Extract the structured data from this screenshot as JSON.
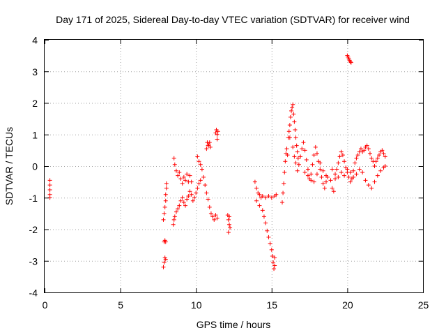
{
  "chart_data": {
    "type": "scatter",
    "title": "Day 171 of 2025, Sidereal Day-to-day VTEC variation (SDTVAR) for receiver wind",
    "xlabel": "GPS time / hours",
    "ylabel": "SDTVAR / TECUs",
    "xlim": [
      0,
      25
    ],
    "ylim": [
      -4,
      4
    ],
    "x_ticks": [
      0,
      5,
      10,
      15,
      20,
      25
    ],
    "x_tick_labels": [
      "0",
      "5",
      "10",
      "15",
      "20",
      "25"
    ],
    "y_ticks": [
      -4,
      -3,
      -2,
      -1,
      0,
      1,
      2,
      3,
      4
    ],
    "y_tick_labels": [
      "-4",
      "-3",
      "-2",
      "-1",
      "0",
      "1",
      "2",
      "3",
      "4"
    ],
    "grid": true,
    "marker": "+",
    "color": "#ff0000",
    "series": [
      {
        "name": "SDTVAR",
        "points": [
          [
            0.35,
            -0.45
          ],
          [
            0.35,
            -0.6
          ],
          [
            0.35,
            -0.75
          ],
          [
            0.35,
            -0.9
          ],
          [
            0.35,
            -1.0
          ],
          [
            7.85,
            -3.2
          ],
          [
            7.9,
            -3.05
          ],
          [
            7.95,
            -2.9
          ],
          [
            8.0,
            -2.95
          ],
          [
            7.9,
            -2.4
          ],
          [
            7.95,
            -2.35
          ],
          [
            8.0,
            -2.4
          ],
          [
            7.85,
            -1.7
          ],
          [
            7.9,
            -1.5
          ],
          [
            7.95,
            -1.3
          ],
          [
            8.0,
            -1.1
          ],
          [
            8.0,
            -0.9
          ],
          [
            8.05,
            -0.7
          ],
          [
            8.05,
            -0.55
          ],
          [
            8.5,
            -1.85
          ],
          [
            8.55,
            -1.7
          ],
          [
            8.6,
            -1.6
          ],
          [
            8.7,
            -1.45
          ],
          [
            8.8,
            -1.35
          ],
          [
            8.9,
            -1.25
          ],
          [
            9.0,
            -1.1
          ],
          [
            9.1,
            -1.0
          ],
          [
            9.2,
            -1.15
          ],
          [
            9.3,
            -1.25
          ],
          [
            9.4,
            -1.05
          ],
          [
            9.5,
            -0.95
          ],
          [
            9.6,
            -0.8
          ],
          [
            9.7,
            -0.9
          ],
          [
            9.8,
            -1.1
          ],
          [
            9.9,
            -1.0
          ],
          [
            10.0,
            -0.85
          ],
          [
            10.1,
            -0.7
          ],
          [
            10.2,
            -0.55
          ],
          [
            10.3,
            -0.45
          ],
          [
            8.55,
            0.25
          ],
          [
            8.6,
            0.05
          ],
          [
            8.7,
            -0.15
          ],
          [
            8.8,
            -0.3
          ],
          [
            8.9,
            -0.2
          ],
          [
            9.0,
            -0.4
          ],
          [
            9.1,
            -0.55
          ],
          [
            9.2,
            -0.35
          ],
          [
            9.3,
            -0.45
          ],
          [
            9.4,
            -0.25
          ],
          [
            9.5,
            -0.5
          ],
          [
            9.6,
            -0.3
          ],
          [
            9.7,
            -0.5
          ],
          [
            10.1,
            0.3
          ],
          [
            10.2,
            0.15
          ],
          [
            10.3,
            0.05
          ],
          [
            10.4,
            -0.1
          ],
          [
            10.5,
            -0.35
          ],
          [
            10.6,
            -0.6
          ],
          [
            10.7,
            -0.85
          ],
          [
            10.8,
            -1.05
          ],
          [
            10.9,
            -1.3
          ],
          [
            11.0,
            -1.5
          ],
          [
            11.1,
            -1.6
          ],
          [
            11.2,
            -1.7
          ],
          [
            11.3,
            -1.55
          ],
          [
            11.4,
            -1.65
          ],
          [
            10.7,
            0.55
          ],
          [
            10.75,
            0.75
          ],
          [
            10.8,
            0.65
          ],
          [
            10.85,
            0.7
          ],
          [
            10.9,
            0.75
          ],
          [
            10.95,
            0.6
          ],
          [
            11.3,
            1.05
          ],
          [
            11.35,
            1.15
          ],
          [
            11.4,
            1.0
          ],
          [
            11.45,
            1.1
          ],
          [
            11.4,
            0.85
          ],
          [
            12.1,
            -1.55
          ],
          [
            12.15,
            -1.7
          ],
          [
            12.2,
            -1.85
          ],
          [
            12.25,
            -1.95
          ],
          [
            12.15,
            -2.1
          ],
          [
            12.2,
            -1.6
          ],
          [
            13.9,
            -0.5
          ],
          [
            14.0,
            -0.7
          ],
          [
            14.1,
            -0.85
          ],
          [
            14.0,
            -1.1
          ],
          [
            14.2,
            -1.25
          ],
          [
            14.3,
            -1.0
          ],
          [
            14.4,
            -1.4
          ],
          [
            14.5,
            -1.6
          ],
          [
            14.6,
            -1.8
          ],
          [
            14.7,
            -2.05
          ],
          [
            14.8,
            -2.25
          ],
          [
            14.9,
            -2.45
          ],
          [
            15.0,
            -2.65
          ],
          [
            15.05,
            -2.85
          ],
          [
            15.1,
            -3.05
          ],
          [
            15.15,
            -3.25
          ],
          [
            15.2,
            -2.9
          ],
          [
            15.2,
            -3.15
          ],
          [
            14.2,
            -0.9
          ],
          [
            14.4,
            -0.95
          ],
          [
            14.6,
            -1.0
          ],
          [
            14.8,
            -0.95
          ],
          [
            15.0,
            -1.0
          ],
          [
            15.2,
            -0.95
          ],
          [
            15.3,
            -0.9
          ],
          [
            15.7,
            -1.15
          ],
          [
            15.75,
            -0.85
          ],
          [
            15.8,
            -0.55
          ],
          [
            15.85,
            -0.2
          ],
          [
            15.9,
            0.15
          ],
          [
            15.95,
            0.4
          ],
          [
            16.0,
            0.55
          ],
          [
            16.05,
            0.35
          ],
          [
            16.1,
            0.9
          ],
          [
            16.15,
            1.1
          ],
          [
            16.2,
            1.3
          ],
          [
            16.25,
            1.55
          ],
          [
            16.3,
            1.75
          ],
          [
            16.35,
            1.85
          ],
          [
            16.4,
            1.95
          ],
          [
            16.45,
            1.65
          ],
          [
            16.5,
            1.4
          ],
          [
            16.55,
            1.15
          ],
          [
            16.6,
            0.9
          ],
          [
            16.65,
            0.65
          ],
          [
            16.7,
            0.45
          ],
          [
            16.75,
            0.25
          ],
          [
            16.2,
            0.9
          ],
          [
            16.4,
            0.6
          ],
          [
            16.5,
            0.3
          ],
          [
            16.6,
            0.1
          ],
          [
            16.7,
            -0.15
          ],
          [
            16.8,
            0.05
          ],
          [
            16.9,
            0.3
          ],
          [
            17.0,
            0.55
          ],
          [
            17.1,
            0.75
          ],
          [
            17.2,
            0.5
          ],
          [
            17.3,
            0.2
          ],
          [
            17.4,
            -0.1
          ],
          [
            17.5,
            -0.4
          ],
          [
            17.6,
            -0.25
          ],
          [
            17.7,
            0.05
          ],
          [
            17.8,
            0.35
          ],
          [
            17.9,
            0.6
          ],
          [
            18.0,
            0.4
          ],
          [
            18.1,
            0.15
          ],
          [
            18.2,
            -0.1
          ],
          [
            18.3,
            -0.35
          ],
          [
            18.4,
            -0.55
          ],
          [
            18.5,
            -0.7
          ],
          [
            18.6,
            -0.5
          ],
          [
            18.7,
            -0.35
          ],
          [
            17.2,
            -0.2
          ],
          [
            17.4,
            -0.3
          ],
          [
            17.6,
            -0.45
          ],
          [
            17.8,
            -0.5
          ],
          [
            18.0,
            -0.25
          ],
          [
            18.2,
            0.1
          ],
          [
            18.4,
            -0.15
          ],
          [
            18.6,
            -0.3
          ],
          [
            18.9,
            -0.45
          ],
          [
            19.0,
            -0.7
          ],
          [
            19.1,
            -0.8
          ],
          [
            19.2,
            -0.4
          ],
          [
            19.3,
            -0.1
          ],
          [
            19.4,
            0.1
          ],
          [
            19.5,
            0.3
          ],
          [
            19.6,
            0.45
          ],
          [
            19.7,
            0.35
          ],
          [
            19.8,
            0.15
          ],
          [
            19.9,
            -0.05
          ],
          [
            20.0,
            -0.2
          ],
          [
            20.1,
            -0.35
          ],
          [
            20.2,
            -0.5
          ],
          [
            20.3,
            -0.4
          ],
          [
            20.4,
            -0.15
          ],
          [
            20.5,
            0.1
          ],
          [
            20.6,
            0.25
          ],
          [
            20.7,
            0.35
          ],
          [
            20.8,
            0.45
          ],
          [
            20.9,
            0.55
          ],
          [
            21.0,
            0.45
          ],
          [
            21.1,
            0.5
          ],
          [
            21.2,
            0.6
          ],
          [
            21.3,
            0.65
          ],
          [
            21.4,
            0.55
          ],
          [
            21.5,
            0.4
          ],
          [
            21.6,
            0.25
          ],
          [
            21.7,
            0.15
          ],
          [
            21.8,
            0.0
          ],
          [
            21.9,
            0.15
          ],
          [
            22.0,
            0.25
          ],
          [
            22.1,
            0.35
          ],
          [
            22.2,
            0.45
          ],
          [
            22.3,
            0.5
          ],
          [
            22.4,
            0.4
          ],
          [
            22.5,
            0.3
          ],
          [
            19.0,
            -0.1
          ],
          [
            19.2,
            -0.25
          ],
          [
            19.4,
            -0.35
          ],
          [
            19.6,
            -0.2
          ],
          [
            19.8,
            -0.3
          ],
          [
            20.0,
            -0.1
          ],
          [
            20.2,
            -0.2
          ],
          [
            20.4,
            -0.35
          ],
          [
            20.6,
            -0.25
          ],
          [
            20.8,
            -0.1
          ],
          [
            21.0,
            -0.2
          ],
          [
            21.2,
            -0.45
          ],
          [
            21.4,
            -0.6
          ],
          [
            21.6,
            -0.7
          ],
          [
            21.8,
            -0.5
          ],
          [
            22.0,
            -0.3
          ],
          [
            22.2,
            -0.15
          ],
          [
            22.4,
            -0.05
          ],
          [
            22.5,
            0.0
          ],
          [
            20.0,
            3.5
          ],
          [
            20.05,
            3.45
          ],
          [
            20.1,
            3.4
          ],
          [
            20.15,
            3.35
          ],
          [
            20.2,
            3.3
          ],
          [
            20.25,
            3.28
          ]
        ]
      }
    ]
  }
}
